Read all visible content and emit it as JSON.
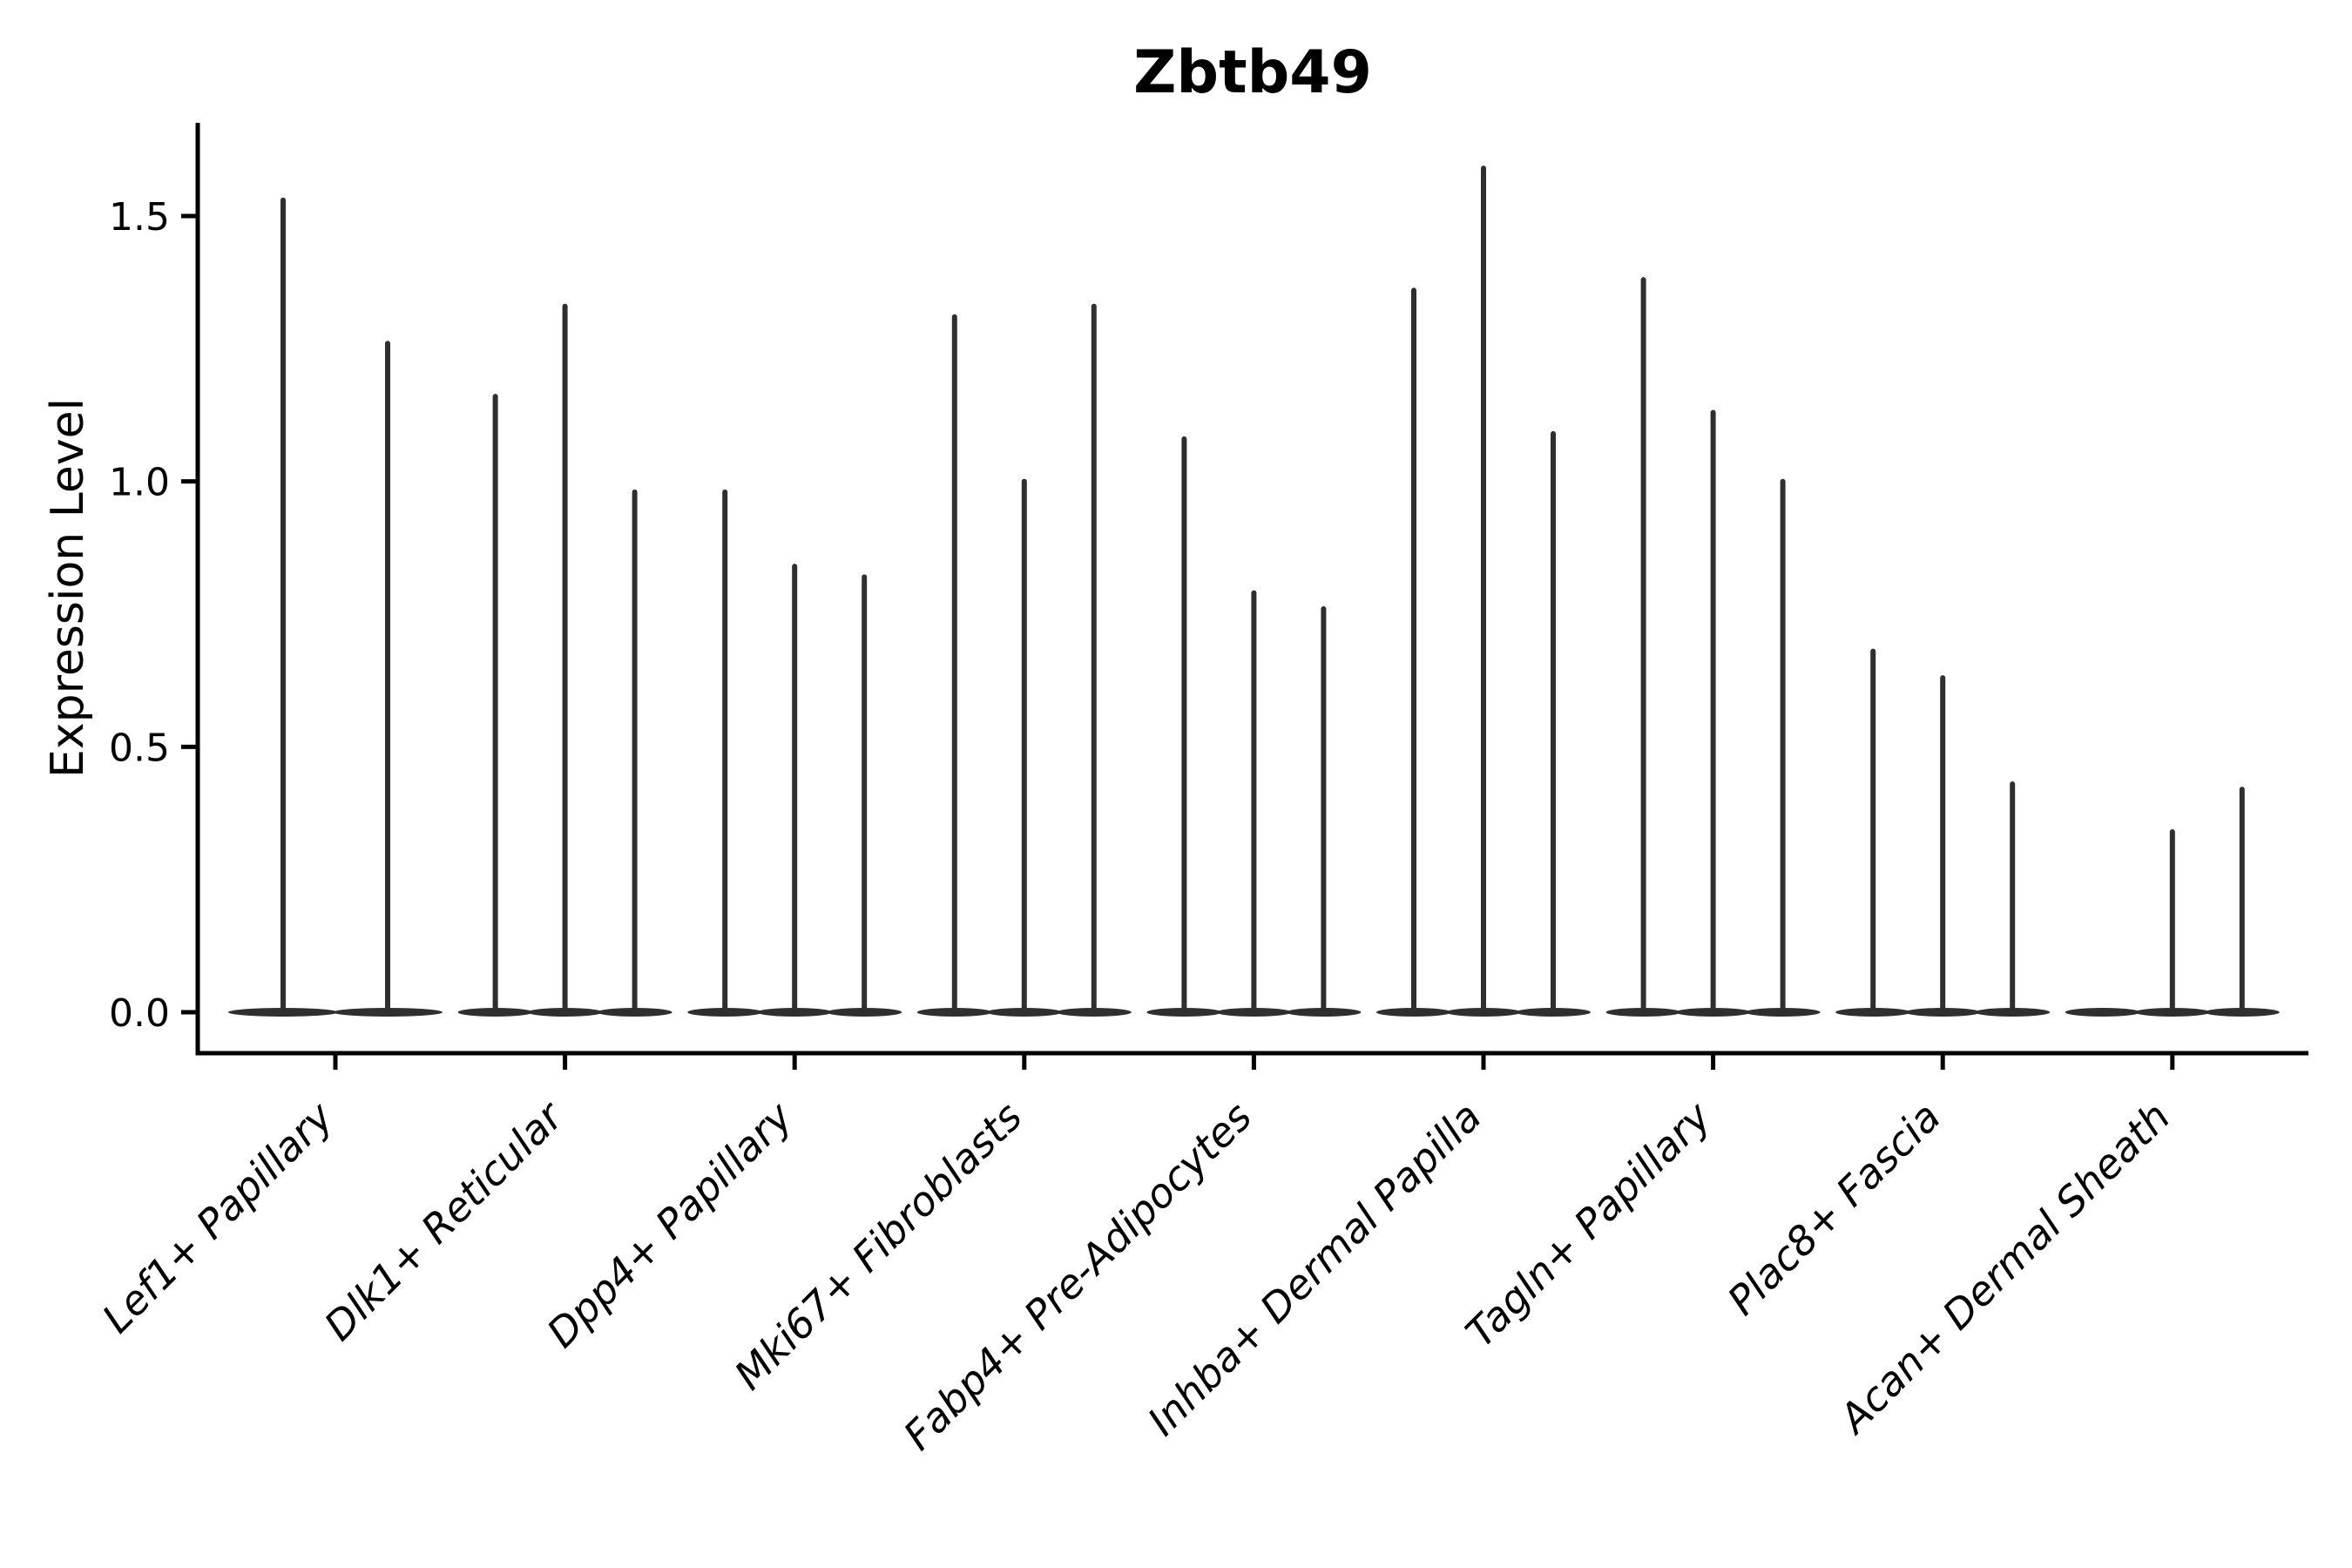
{
  "figure": {
    "title": "Zbtb49",
    "background_color": "#ffffff"
  },
  "chart_data": {
    "type": "violin",
    "title": "Zbtb49",
    "xlabel": "",
    "ylabel": "Expression Level",
    "ylim": [
      -0.08,
      1.68
    ],
    "yticks": [
      0.0,
      0.5,
      1.0,
      1.5
    ],
    "ytick_labels": [
      "0.0",
      "0.5",
      "1.0",
      "1.5"
    ],
    "grid": false,
    "legend_position": "none",
    "x_tick_label_rotation_deg": 45,
    "categories": [
      "Lef1+ Papillary",
      "Dlk1+ Reticular",
      "Dpp4+ Papillary",
      "Mki67+ Fibroblasts",
      "Fabp4+ Pre-Adipocytes",
      "Inhba+ Dermal Papilla",
      "Tagln+ Papillary",
      "Plac8+ Fascia",
      "Acan+ Dermal Sheath"
    ],
    "groups": [
      {
        "category": "Lef1+ Papillary",
        "violin_max_expression": [
          1.53,
          1.26
        ]
      },
      {
        "category": "Dlk1+ Reticular",
        "violin_max_expression": [
          1.16,
          1.33,
          0.98
        ]
      },
      {
        "category": "Dpp4+ Papillary",
        "violin_max_expression": [
          0.98,
          0.84,
          0.82
        ]
      },
      {
        "category": "Mki67+ Fibroblasts",
        "violin_max_expression": [
          1.31,
          1.0,
          1.33
        ]
      },
      {
        "category": "Fabp4+ Pre-Adipocytes",
        "violin_max_expression": [
          1.08,
          0.79,
          0.76
        ]
      },
      {
        "category": "Inhba+ Dermal Papilla",
        "violin_max_expression": [
          1.36,
          1.59,
          1.09
        ]
      },
      {
        "category": "Tagln+ Papillary",
        "violin_max_expression": [
          1.38,
          1.13,
          1.0
        ]
      },
      {
        "category": "Plac8+ Fascia",
        "violin_max_expression": [
          0.68,
          0.63,
          0.43
        ]
      },
      {
        "category": "Acan+ Dermal Sheath",
        "violin_max_expression": [
          0.0,
          0.34,
          0.42
        ]
      }
    ],
    "style_note": "Each violin is a thin vertical spike rising from a flat dense mass at expression 0 up to its maximum value; violins within a category sit side by side on a continuous flat base."
  },
  "colors": {
    "violin": "#2f2f2f",
    "axis": "#000000",
    "text": "#000000",
    "background": "#ffffff"
  }
}
